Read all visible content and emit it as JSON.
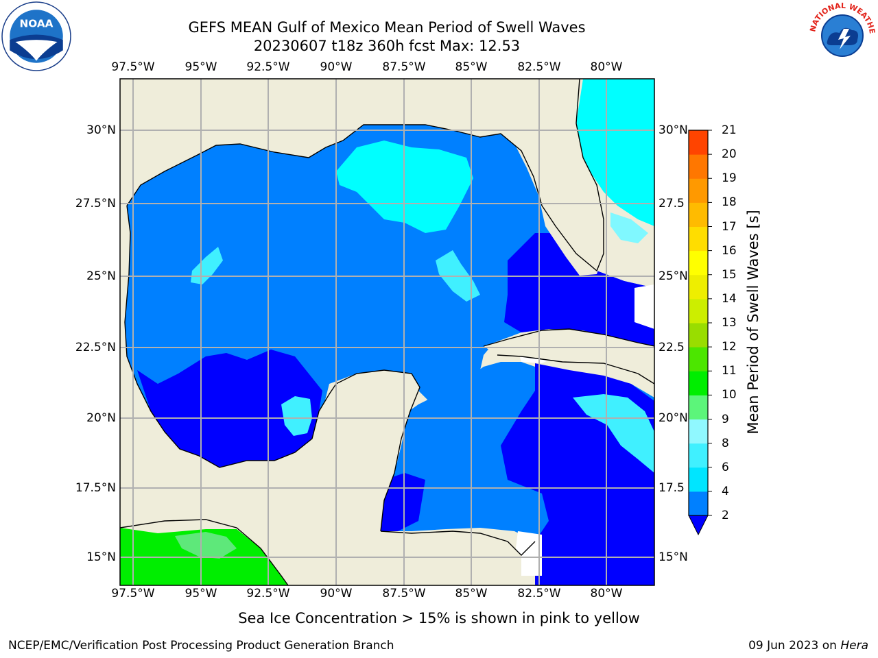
{
  "title_line1": "GEFS MEAN Gulf of Mexico Mean Period of Swell Waves",
  "title_line2": "20230607 t18z 360h fcst   Max: 12.53",
  "lon_labels": [
    "97.5°W",
    "95°W",
    "92.5°W",
    "90°W",
    "87.5°W",
    "85°W",
    "82.5°W",
    "80°W"
  ],
  "lat_labels_left": [
    "30°N",
    "27.5°N",
    "25°N",
    "22.5°N",
    "20°N",
    "17.5°N",
    "15°N"
  ],
  "lat_labels_right": [
    "30°N",
    "27.5",
    "25°N",
    "22.5",
    "20°N",
    "17.5",
    "15°N"
  ],
  "colorbar": {
    "title": "Mean Period of Swell Waves [s]",
    "ticks": [
      "2",
      "4",
      "6",
      "8",
      "9",
      "10",
      "11",
      "12",
      "13",
      "14",
      "15",
      "16",
      "17",
      "18",
      "19",
      "20",
      "21"
    ],
    "colors": [
      "#0080ff",
      "#00e5ff",
      "#40f0ff",
      "#90f8ff",
      "#5cf57a",
      "#00ee00",
      "#4ce600",
      "#99dd00",
      "#ccee00",
      "#eeee00",
      "#ffff00",
      "#ffdd00",
      "#ffbb00",
      "#ff9900",
      "#ff7700",
      "#ff4400",
      "#ff0000"
    ],
    "extend_color": "#0000ff"
  },
  "palette": {
    "land": "#efedda",
    "deep_blue": "#0000ff",
    "mid_blue": "#0080ff",
    "cyan": "#00ffff",
    "light_cyan": "#60f8ff",
    "green": "#00ee00",
    "light_green": "#5ee87a"
  },
  "footnote": "Sea Ice Concentration > 15% is shown in pink to yellow",
  "credit": "NCEP/EMC/Verification Post Processing Product Generation Branch",
  "date_text": "09 Jun 2023 on",
  "host_text": "Hera",
  "logos": {
    "noaa_text": "NOAA",
    "nws_text": "NATIONAL WEATHER SERVICE"
  }
}
